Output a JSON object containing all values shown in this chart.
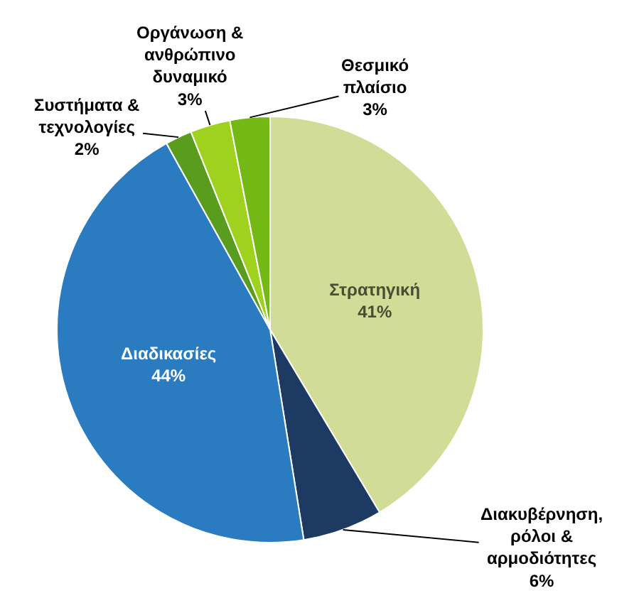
{
  "chart_data": {
    "type": "pie",
    "categories": [
      "Στρατηγική",
      "Διακυβέρνηση, ρόλοι & αρμοδιότητες",
      "Διαδικασίες",
      "Συστήματα & τεχνολογίες",
      "Οργάνωση & ανθρώπινο δυναμικό",
      "Θεσμικό πλαίσιο"
    ],
    "values": [
      41,
      6,
      44,
      2,
      3,
      3
    ],
    "colors": [
      "#d1dc96",
      "#1c3a62",
      "#2a7bbf",
      "#5a9c1e",
      "#9fd21f",
      "#74b814"
    ],
    "value_labels": [
      "41%",
      "6%",
      "44%",
      "2%",
      "3%",
      "3%"
    ]
  }
}
